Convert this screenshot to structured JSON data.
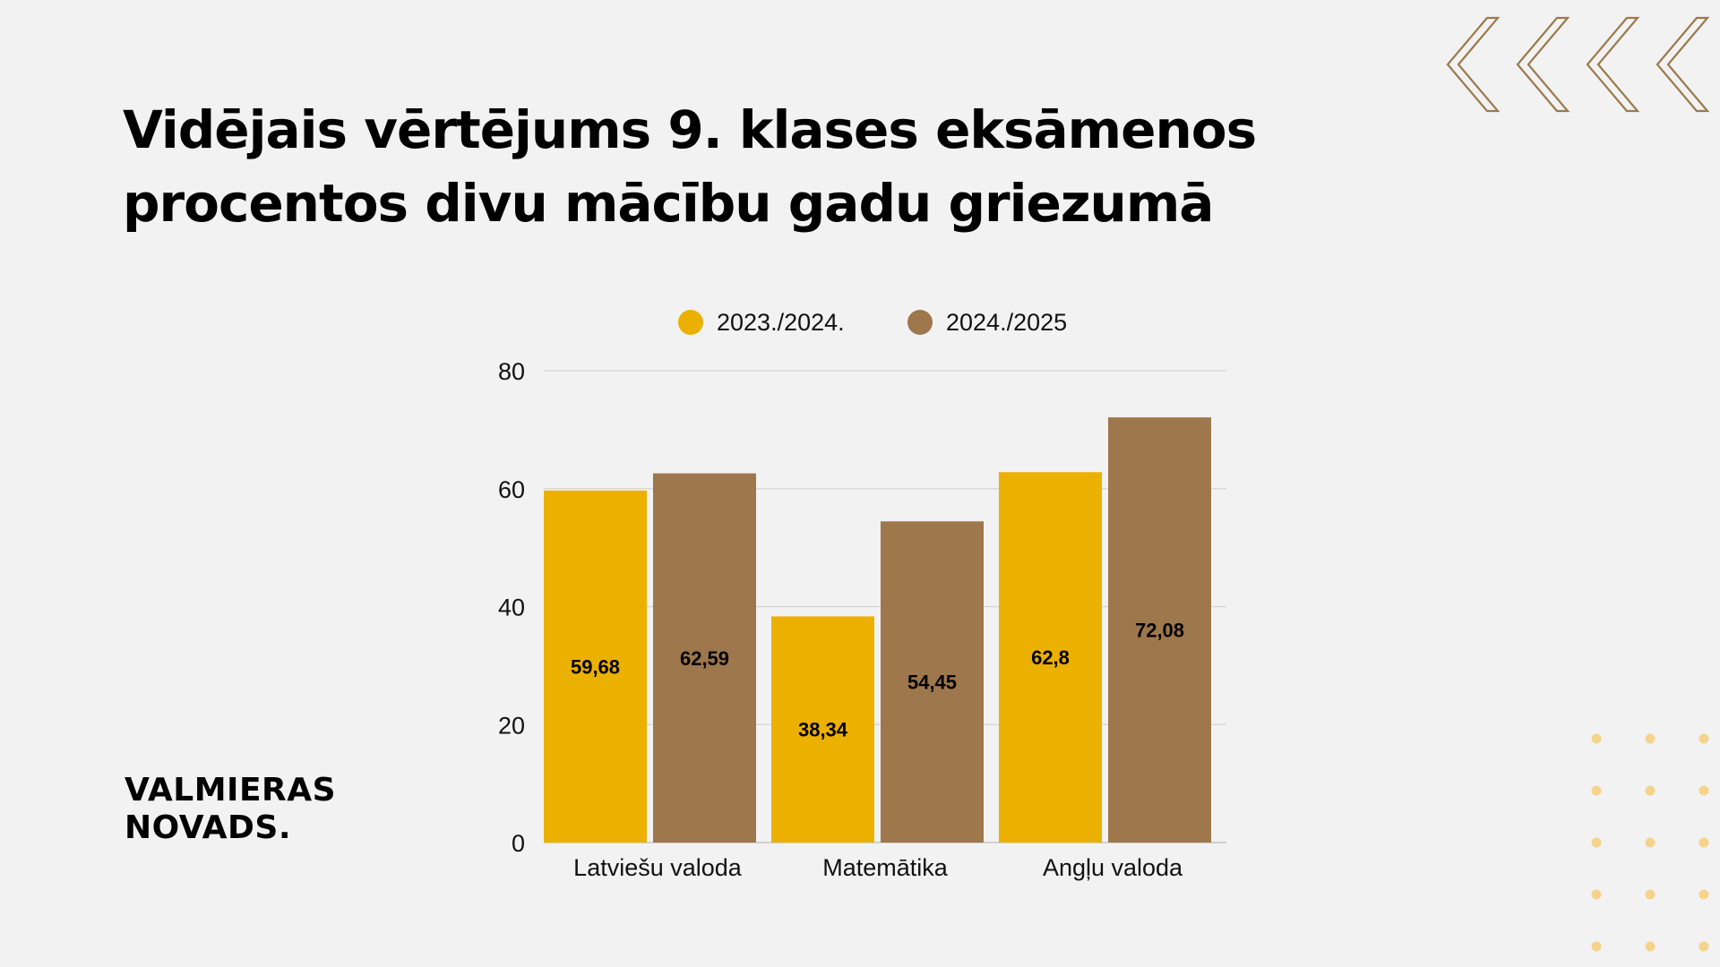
{
  "page": {
    "title_line1": "Vidējais vērtējums 9. klases eksāmenos",
    "title_line2": "procentos divu mācību gadu griezumā",
    "logo_line1": "VALMIERAS",
    "logo_line2": "NOVADS.",
    "decor": {
      "chevron_color": "#9b7a4c",
      "dot_color": "#f5d38a"
    }
  },
  "chart_data": {
    "type": "bar",
    "categories": [
      "Latviešu valoda",
      "Matemātika",
      "Angļu valoda"
    ],
    "series": [
      {
        "name": "2023./2024.",
        "color": "#ebb000",
        "values": [
          59.68,
          38.34,
          62.8
        ],
        "labels": [
          "59,68",
          "38,34",
          "62,8"
        ]
      },
      {
        "name": "2024./2025",
        "color": "#9e774c",
        "values": [
          62.59,
          54.45,
          72.08
        ],
        "labels": [
          "62,59",
          "54,45",
          "72,08"
        ]
      }
    ],
    "ylim": [
      0,
      80
    ],
    "yticks": [
      0,
      20,
      40,
      60,
      80
    ],
    "grid": true,
    "legend": "top"
  }
}
